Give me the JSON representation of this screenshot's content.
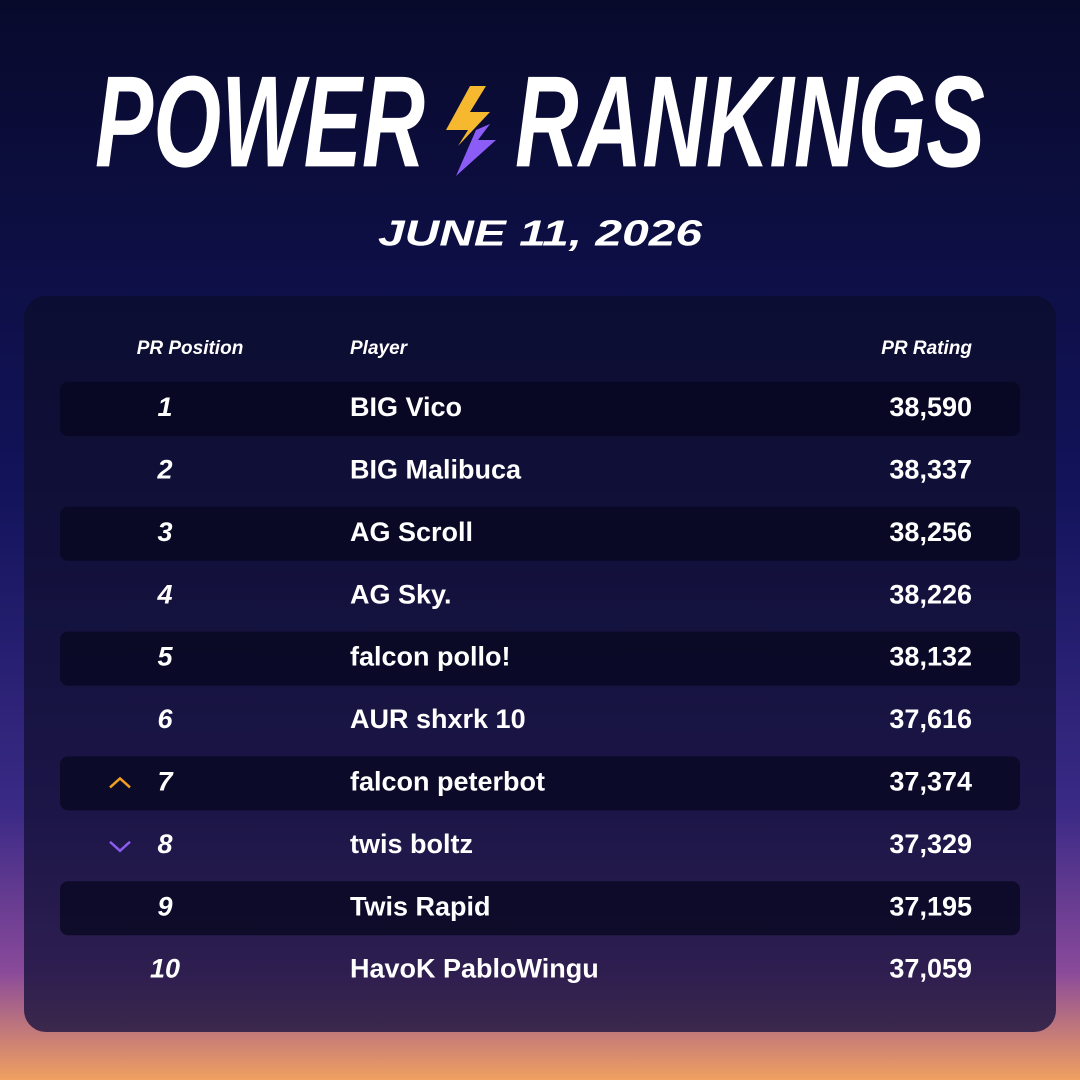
{
  "header": {
    "title_left": "POWER",
    "title_right": "RANKINGS",
    "date": "JUNE 11, 2026"
  },
  "table": {
    "columns": [
      "PR Position",
      "Player",
      "PR Rating"
    ],
    "rows": [
      {
        "position": "1",
        "player": "BIG Vico",
        "rating": "38,590"
      },
      {
        "position": "2",
        "player": "BIG Malibuca",
        "rating": "38,337"
      },
      {
        "position": "3",
        "player": "AG Scroll",
        "rating": "38,256"
      },
      {
        "position": "4",
        "player": "AG Sky.",
        "rating": "38,226"
      },
      {
        "position": "5",
        "player": "falcon pollo!",
        "rating": "38,132"
      },
      {
        "position": "6",
        "player": "AUR shxrk 10",
        "rating": "37,616"
      },
      {
        "position": "7",
        "player": "falcon peterbot",
        "rating": "37,374",
        "trend": "up"
      },
      {
        "position": "8",
        "player": "twis boltz",
        "rating": "37,329",
        "trend": "down"
      },
      {
        "position": "9",
        "player": "Twis Rapid",
        "rating": "37,195"
      },
      {
        "position": "10",
        "player": "HavoK PabloWingu",
        "rating": "37,059"
      }
    ]
  }
}
